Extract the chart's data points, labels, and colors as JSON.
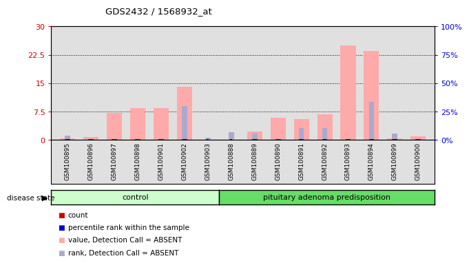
{
  "title": "GDS2432 / 1568932_at",
  "samples": [
    "GSM100895",
    "GSM100896",
    "GSM100897",
    "GSM100898",
    "GSM100901",
    "GSM100902",
    "GSM100903",
    "GSM100888",
    "GSM100889",
    "GSM100890",
    "GSM100891",
    "GSM100892",
    "GSM100893",
    "GSM100894",
    "GSM100899",
    "GSM100900"
  ],
  "control_count": 7,
  "group1_label": "control",
  "group2_label": "pituitary adenoma predisposition",
  "pink_values": [
    0.4,
    0.8,
    7.2,
    8.5,
    8.5,
    14.0,
    0.0,
    0.0,
    2.2,
    5.8,
    5.5,
    6.8,
    25.0,
    23.5,
    0.4,
    1.0
  ],
  "blue_rank_values": [
    1.2,
    0.0,
    0.0,
    0.0,
    0.0,
    9.0,
    0.7,
    2.0,
    1.8,
    0.0,
    3.2,
    3.2,
    0.0,
    10.0,
    1.8,
    0.0
  ],
  "red_count_values": [
    1,
    1,
    1,
    1,
    1,
    1,
    0,
    0,
    1,
    1,
    1,
    1,
    1,
    1,
    1,
    1
  ],
  "blue_pct_values": [
    1,
    0,
    0,
    0,
    0,
    1,
    1,
    1,
    1,
    0,
    1,
    1,
    0,
    1,
    1,
    0
  ],
  "ylim_left": [
    0,
    30
  ],
  "ylim_right": [
    0,
    100
  ],
  "yticks_left": [
    0,
    7.5,
    15,
    22.5,
    30
  ],
  "yticks_right": [
    0,
    25,
    50,
    75,
    100
  ],
  "ytick_labels_left": [
    "0",
    "7.5",
    "15",
    "22.5",
    "30"
  ],
  "ytick_labels_right": [
    "0%",
    "25%",
    "50%",
    "75%",
    "100%"
  ],
  "left_axis_color": "#cc0000",
  "right_axis_color": "#0000cc",
  "pink_bar_color": "#ffaaaa",
  "blue_bar_color": "#aaaacc",
  "red_mark_color": "#cc0000",
  "blue_mark_color": "#0000cc",
  "group1_bg": "#ccffcc",
  "group2_bg": "#66dd66",
  "axis_bg": "#e0e0e0",
  "white_bg": "#ffffff"
}
